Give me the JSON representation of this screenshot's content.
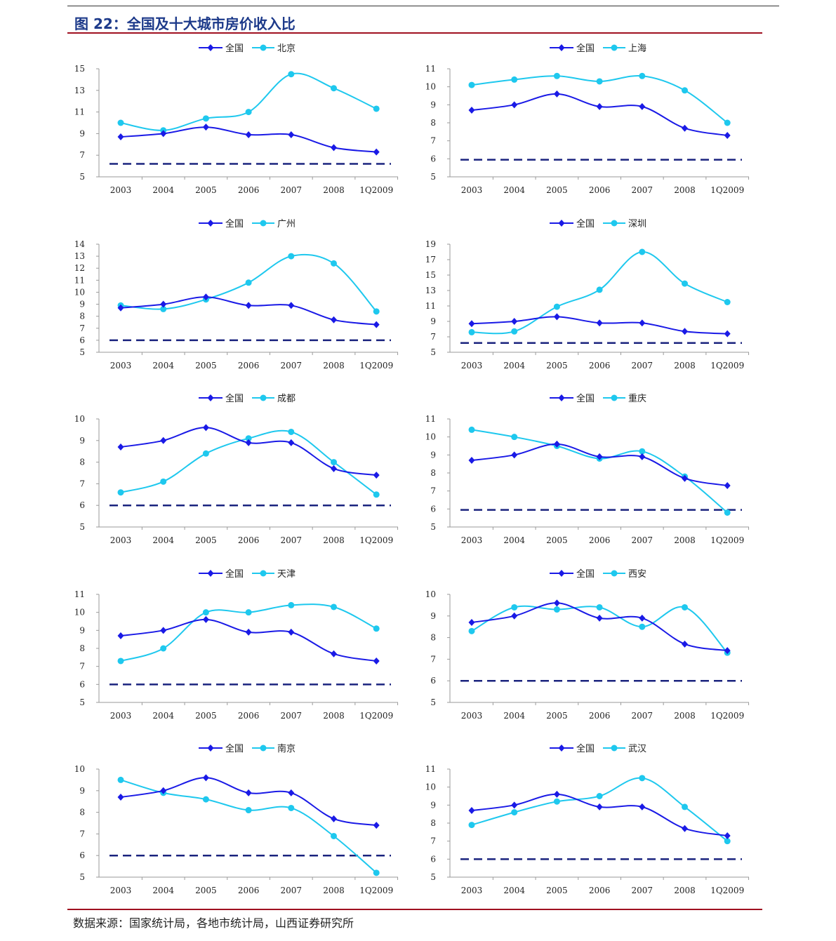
{
  "header": {
    "title": "图 22：全国及十大城市房价收入比"
  },
  "footer": {
    "source": "数据来源：国家统计局，各地市统计局，山西证券研究所"
  },
  "colors": {
    "national": "#1a1ae6",
    "city": "#1ec8ee",
    "reference": "#1a237e",
    "accent_rule": "#a01020",
    "title": "#1d3a8a"
  },
  "chart_data": [
    {
      "type": "line",
      "categories": [
        "2003",
        "2004",
        "2005",
        "2006",
        "2007",
        "2008",
        "1Q2009"
      ],
      "ylim": [
        5,
        15
      ],
      "yticks": [
        5,
        7,
        9,
        11,
        13,
        15
      ],
      "reference_value": 6.2,
      "legend_position": "top-center",
      "series": [
        {
          "name": "全国",
          "values": [
            8.7,
            9.0,
            9.6,
            8.9,
            8.9,
            7.7,
            7.3
          ]
        },
        {
          "name": "北京",
          "values": [
            10.0,
            9.3,
            10.4,
            11.0,
            14.5,
            13.2,
            11.3
          ]
        }
      ]
    },
    {
      "type": "line",
      "categories": [
        "2003",
        "2004",
        "2005",
        "2006",
        "2007",
        "2008",
        "1Q2009"
      ],
      "ylim": [
        5,
        11
      ],
      "yticks": [
        5,
        6,
        7,
        8,
        9,
        10,
        11
      ],
      "reference_value": 5.95,
      "legend_position": "top-center",
      "series": [
        {
          "name": "全国",
          "values": [
            8.7,
            9.0,
            9.6,
            8.9,
            8.9,
            7.7,
            7.3
          ]
        },
        {
          "name": "上海",
          "values": [
            10.1,
            10.4,
            10.6,
            10.3,
            10.6,
            9.8,
            8.0
          ]
        }
      ]
    },
    {
      "type": "line",
      "categories": [
        "2003",
        "2004",
        "2005",
        "2006",
        "2007",
        "2008",
        "1Q2009"
      ],
      "ylim": [
        5,
        14
      ],
      "yticks": [
        5,
        6,
        7,
        8,
        9,
        10,
        11,
        12,
        13,
        14
      ],
      "reference_value": 6.0,
      "legend_position": "top-center",
      "series": [
        {
          "name": "全国",
          "values": [
            8.7,
            9.0,
            9.6,
            8.9,
            8.9,
            7.7,
            7.3
          ]
        },
        {
          "name": "广州",
          "values": [
            8.9,
            8.6,
            9.4,
            10.8,
            13.0,
            12.4,
            8.4
          ]
        }
      ]
    },
    {
      "type": "line",
      "categories": [
        "2003",
        "2004",
        "2005",
        "2006",
        "2007",
        "2008",
        "1Q2009"
      ],
      "ylim": [
        5,
        19
      ],
      "yticks": [
        5,
        7,
        9,
        11,
        13,
        15,
        17,
        19
      ],
      "reference_value": 6.2,
      "legend_position": "top-center",
      "series": [
        {
          "name": "全国",
          "values": [
            8.7,
            9.0,
            9.6,
            8.8,
            8.8,
            7.7,
            7.4
          ]
        },
        {
          "name": "深圳",
          "values": [
            7.6,
            7.7,
            10.9,
            13.1,
            18.0,
            13.9,
            11.5
          ]
        }
      ]
    },
    {
      "type": "line",
      "categories": [
        "2003",
        "2004",
        "2005",
        "2006",
        "2007",
        "2008",
        "1Q2009"
      ],
      "ylim": [
        5,
        10
      ],
      "yticks": [
        5,
        6,
        7,
        8,
        9,
        10
      ],
      "reference_value": 6.0,
      "legend_position": "top-center",
      "series": [
        {
          "name": "全国",
          "values": [
            8.7,
            9.0,
            9.6,
            8.9,
            8.9,
            7.7,
            7.4
          ]
        },
        {
          "name": "成都",
          "values": [
            6.6,
            7.1,
            8.4,
            9.1,
            9.4,
            8.0,
            6.5
          ]
        }
      ]
    },
    {
      "type": "line",
      "categories": [
        "2003",
        "2004",
        "2005",
        "2006",
        "2007",
        "2008",
        "1Q2009"
      ],
      "ylim": [
        5,
        11
      ],
      "yticks": [
        5,
        6,
        7,
        8,
        9,
        10,
        11
      ],
      "reference_value": 5.95,
      "legend_position": "top-center",
      "series": [
        {
          "name": "全国",
          "values": [
            8.7,
            9.0,
            9.6,
            8.9,
            8.9,
            7.7,
            7.3
          ]
        },
        {
          "name": "重庆",
          "values": [
            10.4,
            10.0,
            9.5,
            8.8,
            9.2,
            7.8,
            5.8
          ]
        }
      ]
    },
    {
      "type": "line",
      "categories": [
        "2003",
        "2004",
        "2005",
        "2006",
        "2007",
        "2008",
        "1Q2009"
      ],
      "ylim": [
        5,
        11
      ],
      "yticks": [
        5,
        6,
        7,
        8,
        9,
        10,
        11
      ],
      "reference_value": 6.0,
      "legend_position": "top-center",
      "series": [
        {
          "name": "全国",
          "values": [
            8.7,
            9.0,
            9.6,
            8.9,
            8.9,
            7.7,
            7.3
          ]
        },
        {
          "name": "天津",
          "values": [
            7.3,
            8.0,
            10.0,
            10.0,
            10.4,
            10.3,
            9.1
          ]
        }
      ]
    },
    {
      "type": "line",
      "categories": [
        "2003",
        "2004",
        "2005",
        "2006",
        "2007",
        "2008",
        "1Q2009"
      ],
      "ylim": [
        5,
        10
      ],
      "yticks": [
        5,
        6,
        7,
        8,
        9,
        10
      ],
      "reference_value": 6.0,
      "legend_position": "top-center",
      "series": [
        {
          "name": "全国",
          "values": [
            8.7,
            9.0,
            9.6,
            8.9,
            8.9,
            7.7,
            7.4
          ]
        },
        {
          "name": "西安",
          "values": [
            8.3,
            9.4,
            9.3,
            9.4,
            8.5,
            9.4,
            7.3
          ]
        }
      ]
    },
    {
      "type": "line",
      "categories": [
        "2003",
        "2004",
        "2005",
        "2006",
        "2007",
        "2008",
        "1Q2009"
      ],
      "ylim": [
        5,
        10
      ],
      "yticks": [
        5,
        6,
        7,
        8,
        9,
        10
      ],
      "reference_value": 6.0,
      "legend_position": "top-center",
      "series": [
        {
          "name": "全国",
          "values": [
            8.7,
            9.0,
            9.6,
            8.9,
            8.9,
            7.7,
            7.4
          ]
        },
        {
          "name": "南京",
          "values": [
            9.5,
            8.9,
            8.6,
            8.1,
            8.2,
            6.9,
            5.2
          ]
        }
      ]
    },
    {
      "type": "line",
      "categories": [
        "2003",
        "2004",
        "2005",
        "2006",
        "2007",
        "2008",
        "1Q2009"
      ],
      "ylim": [
        5,
        11
      ],
      "yticks": [
        5,
        6,
        7,
        8,
        9,
        10,
        11
      ],
      "reference_value": 6.0,
      "legend_position": "top-center",
      "series": [
        {
          "name": "全国",
          "values": [
            8.7,
            9.0,
            9.6,
            8.9,
            8.9,
            7.7,
            7.3
          ]
        },
        {
          "name": "武汉",
          "values": [
            7.9,
            8.6,
            9.2,
            9.5,
            10.5,
            8.9,
            7.0
          ]
        }
      ]
    }
  ]
}
